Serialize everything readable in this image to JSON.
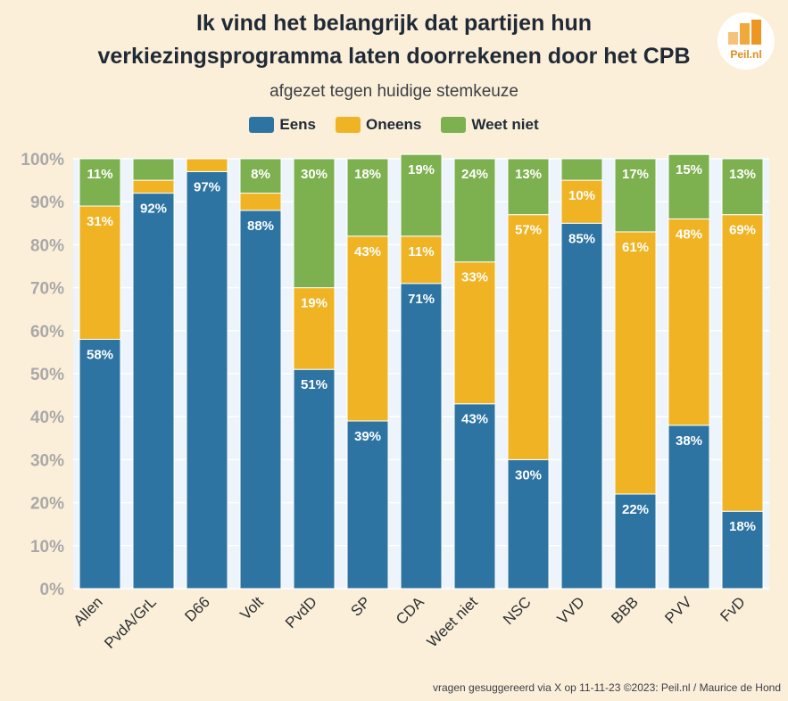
{
  "header": {
    "title_line1": "Ik vind het belangrijk dat partijen hun",
    "title_line2": "verkiezingsprogramma laten doorrekenen door het CPB",
    "subtitle": "afgezet tegen huidige stemkeuze"
  },
  "logo": {
    "text": "Peil.nl"
  },
  "footer": {
    "credit": "vragen gesuggereerd via X op 11-11-23 ©2023: Peil.nl / Maurice de Hond"
  },
  "colors": {
    "eens": "#2e74a3",
    "oneens": "#f0b323",
    "weet_niet": "#7db04f",
    "plot_bg": "#edf4fb",
    "axis_text": "#a9a9a9"
  },
  "chart_data": {
    "type": "bar",
    "stacked": true,
    "title": "Ik vind het belangrijk dat partijen hun verkiezingsprogramma laten doorrekenen door het CPB",
    "subtitle": "afgezet tegen huidige stemkeuze",
    "xlabel": "",
    "ylabel": "",
    "ylim": [
      0,
      100
    ],
    "yticks": [
      "0%",
      "10%",
      "20%",
      "30%",
      "40%",
      "50%",
      "60%",
      "70%",
      "80%",
      "90%",
      "100%"
    ],
    "legend_position": "top-center",
    "categories": [
      "Allen",
      "PvdA/GrL",
      "D66",
      "Volt",
      "PvdD",
      "SP",
      "CDA",
      "Weet niet",
      "NSC",
      "VVD",
      "BBB",
      "PVV",
      "FvD"
    ],
    "series": [
      {
        "name": "Eens",
        "color": "#2e74a3",
        "values": [
          58,
          92,
          97,
          88,
          51,
          39,
          71,
          43,
          30,
          85,
          22,
          38,
          18
        ]
      },
      {
        "name": "Oneens",
        "color": "#f0b323",
        "values": [
          31,
          3,
          3,
          4,
          19,
          43,
          11,
          33,
          57,
          10,
          61,
          48,
          69
        ]
      },
      {
        "name": "Weet niet",
        "color": "#7db04f",
        "values": [
          11,
          5,
          0,
          8,
          30,
          18,
          19,
          24,
          13,
          5,
          17,
          15,
          13
        ]
      }
    ],
    "data_labels": [
      [
        "58%",
        "92%",
        "97%",
        "88%",
        "51%",
        "39%",
        "71%",
        "43%",
        "30%",
        "85%",
        "22%",
        "38%",
        "18%"
      ],
      [
        "31%",
        "",
        "",
        "",
        "19%",
        "43%",
        "11%",
        "33%",
        "57%",
        "10%",
        "61%",
        "48%",
        "69%"
      ],
      [
        "11%",
        "",
        "",
        "8%",
        "30%",
        "18%",
        "19%",
        "24%",
        "13%",
        "",
        "17%",
        "15%",
        "13%"
      ]
    ]
  }
}
